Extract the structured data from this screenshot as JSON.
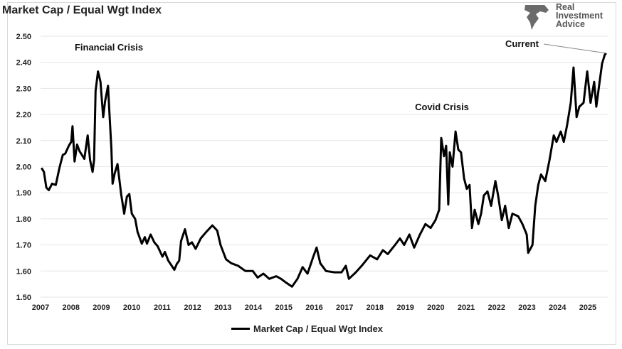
{
  "chart_data": {
    "type": "line",
    "title": "Market Cap / Equal Wgt Index",
    "xlabel": "",
    "ylabel": "",
    "ylim": [
      1.5,
      2.5
    ],
    "xlim": [
      2007,
      2025.7
    ],
    "yticks": [
      "1.50",
      "1.60",
      "1.70",
      "1.80",
      "1.90",
      "2.00",
      "2.10",
      "2.20",
      "2.30",
      "2.40",
      "2.50"
    ],
    "xticks": [
      "2007",
      "2008",
      "2009",
      "2010",
      "2011",
      "2012",
      "2013",
      "2014",
      "2015",
      "2016",
      "2017",
      "2018",
      "2019",
      "2020",
      "2021",
      "2022",
      "2023",
      "2024",
      "2025"
    ],
    "grid": true,
    "legend_placement": "bottom",
    "line_color": "#000000",
    "series": [
      {
        "name": "Market Cap / Equal Wgt Index",
        "points": [
          [
            2007.03,
            1.995
          ],
          [
            2007.11,
            1.98
          ],
          [
            2007.19,
            1.92
          ],
          [
            2007.27,
            1.91
          ],
          [
            2007.38,
            1.935
          ],
          [
            2007.5,
            1.93
          ],
          [
            2007.62,
            1.995
          ],
          [
            2007.73,
            2.045
          ],
          [
            2007.81,
            2.05
          ],
          [
            2007.93,
            2.08
          ],
          [
            2008.01,
            2.095
          ],
          [
            2008.05,
            2.155
          ],
          [
            2008.12,
            2.02
          ],
          [
            2008.2,
            2.085
          ],
          [
            2008.28,
            2.06
          ],
          [
            2008.44,
            2.03
          ],
          [
            2008.55,
            2.12
          ],
          [
            2008.63,
            2.025
          ],
          [
            2008.71,
            1.98
          ],
          [
            2008.76,
            2.025
          ],
          [
            2008.81,
            2.29
          ],
          [
            2008.89,
            2.365
          ],
          [
            2008.97,
            2.325
          ],
          [
            2009.06,
            2.19
          ],
          [
            2009.12,
            2.25
          ],
          [
            2009.22,
            2.31
          ],
          [
            2009.26,
            2.22
          ],
          [
            2009.33,
            2.07
          ],
          [
            2009.37,
            1.935
          ],
          [
            2009.44,
            1.975
          ],
          [
            2009.53,
            2.01
          ],
          [
            2009.65,
            1.895
          ],
          [
            2009.75,
            1.82
          ],
          [
            2009.84,
            1.885
          ],
          [
            2009.92,
            1.895
          ],
          [
            2010.0,
            1.82
          ],
          [
            2010.11,
            1.8
          ],
          [
            2010.19,
            1.75
          ],
          [
            2010.33,
            1.705
          ],
          [
            2010.43,
            1.73
          ],
          [
            2010.5,
            1.705
          ],
          [
            2010.62,
            1.74
          ],
          [
            2010.74,
            1.71
          ],
          [
            2010.85,
            1.695
          ],
          [
            2011.01,
            1.655
          ],
          [
            2011.09,
            1.673
          ],
          [
            2011.2,
            1.64
          ],
          [
            2011.4,
            1.605
          ],
          [
            2011.48,
            1.627
          ],
          [
            2011.56,
            1.64
          ],
          [
            2011.62,
            1.715
          ],
          [
            2011.75,
            1.76
          ],
          [
            2011.87,
            1.7
          ],
          [
            2011.98,
            1.71
          ],
          [
            2012.1,
            1.685
          ],
          [
            2012.27,
            1.725
          ],
          [
            2012.45,
            1.75
          ],
          [
            2012.65,
            1.775
          ],
          [
            2012.81,
            1.755
          ],
          [
            2012.92,
            1.7
          ],
          [
            2013.1,
            1.645
          ],
          [
            2013.27,
            1.63
          ],
          [
            2013.5,
            1.62
          ],
          [
            2013.74,
            1.6
          ],
          [
            2013.98,
            1.6
          ],
          [
            2014.14,
            1.575
          ],
          [
            2014.33,
            1.59
          ],
          [
            2014.52,
            1.57
          ],
          [
            2014.75,
            1.58
          ],
          [
            2014.91,
            1.57
          ],
          [
            2015.08,
            1.555
          ],
          [
            2015.27,
            1.54
          ],
          [
            2015.45,
            1.57
          ],
          [
            2015.62,
            1.615
          ],
          [
            2015.78,
            1.59
          ],
          [
            2015.97,
            1.655
          ],
          [
            2016.08,
            1.69
          ],
          [
            2016.2,
            1.63
          ],
          [
            2016.39,
            1.6
          ],
          [
            2016.67,
            1.595
          ],
          [
            2016.9,
            1.595
          ],
          [
            2017.04,
            1.62
          ],
          [
            2017.14,
            1.57
          ],
          [
            2017.37,
            1.595
          ],
          [
            2017.6,
            1.625
          ],
          [
            2017.84,
            1.66
          ],
          [
            2018.07,
            1.645
          ],
          [
            2018.26,
            1.68
          ],
          [
            2018.42,
            1.665
          ],
          [
            2018.66,
            1.7
          ],
          [
            2018.82,
            1.725
          ],
          [
            2018.96,
            1.7
          ],
          [
            2019.13,
            1.74
          ],
          [
            2019.29,
            1.69
          ],
          [
            2019.48,
            1.74
          ],
          [
            2019.66,
            1.78
          ],
          [
            2019.83,
            1.765
          ],
          [
            2019.99,
            1.795
          ],
          [
            2020.11,
            1.835
          ],
          [
            2020.18,
            2.11
          ],
          [
            2020.27,
            2.04
          ],
          [
            2020.34,
            2.08
          ],
          [
            2020.41,
            1.855
          ],
          [
            2020.46,
            2.055
          ],
          [
            2020.55,
            2.0
          ],
          [
            2020.65,
            2.135
          ],
          [
            2020.74,
            2.065
          ],
          [
            2020.83,
            2.055
          ],
          [
            2020.93,
            1.955
          ],
          [
            2021.02,
            1.915
          ],
          [
            2021.11,
            1.93
          ],
          [
            2021.19,
            1.765
          ],
          [
            2021.28,
            1.835
          ],
          [
            2021.4,
            1.78
          ],
          [
            2021.49,
            1.82
          ],
          [
            2021.58,
            1.89
          ],
          [
            2021.7,
            1.905
          ],
          [
            2021.82,
            1.85
          ],
          [
            2021.96,
            1.945
          ],
          [
            2022.05,
            1.89
          ],
          [
            2022.17,
            1.795
          ],
          [
            2022.28,
            1.85
          ],
          [
            2022.4,
            1.765
          ],
          [
            2022.52,
            1.82
          ],
          [
            2022.71,
            1.81
          ],
          [
            2022.85,
            1.78
          ],
          [
            2022.99,
            1.74
          ],
          [
            2023.04,
            1.67
          ],
          [
            2023.18,
            1.7
          ],
          [
            2023.27,
            1.85
          ],
          [
            2023.37,
            1.93
          ],
          [
            2023.46,
            1.97
          ],
          [
            2023.6,
            1.945
          ],
          [
            2023.74,
            2.025
          ],
          [
            2023.88,
            2.12
          ],
          [
            2023.97,
            2.095
          ],
          [
            2024.11,
            2.135
          ],
          [
            2024.21,
            2.095
          ],
          [
            2024.32,
            2.16
          ],
          [
            2024.44,
            2.245
          ],
          [
            2024.53,
            2.38
          ],
          [
            2024.63,
            2.19
          ],
          [
            2024.72,
            2.23
          ],
          [
            2024.86,
            2.245
          ],
          [
            2024.98,
            2.365
          ],
          [
            2025.09,
            2.245
          ],
          [
            2025.21,
            2.325
          ],
          [
            2025.28,
            2.23
          ],
          [
            2025.37,
            2.31
          ],
          [
            2025.47,
            2.395
          ],
          [
            2025.56,
            2.43
          ],
          [
            2025.61,
            2.435
          ]
        ]
      }
    ],
    "annotations": [
      {
        "text": "Financial Crisis",
        "x": 2008.89,
        "y": 2.365
      },
      {
        "text": "Covid Crisis",
        "x": 2020.18,
        "y": 2.11
      },
      {
        "text": "Current",
        "x": 2025.61,
        "y": 2.435
      }
    ]
  },
  "logo": {
    "text": "Real Investment Advice",
    "lines": [
      "Real",
      "Investment",
      "Advice"
    ]
  }
}
